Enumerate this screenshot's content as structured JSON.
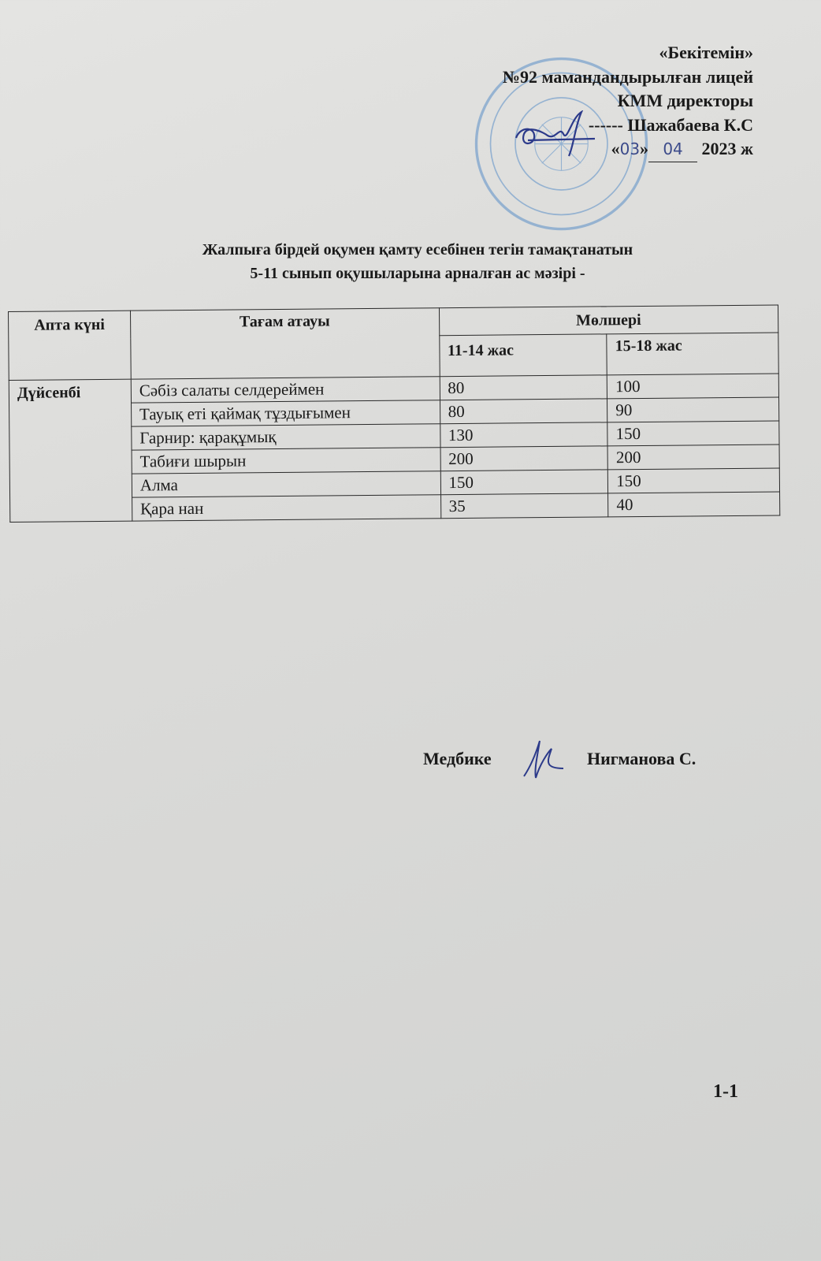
{
  "approval": {
    "line1": "«Бекітемін»",
    "line2": "№92 мамандандырылған лицей",
    "line3": "КММ директоры",
    "signature_dashes": "------",
    "director_name": "Шажабаева К.С",
    "date_open": "«",
    "date_day": "03",
    "date_close": "»",
    "date_month": "04",
    "date_year": "2023 ж",
    "stamp_color": "#5a8fc8"
  },
  "title": {
    "line1": "Жалпыға бірдей оқумен қамту есебінен тегін тамақтанатын",
    "line2": "5-11 сынып оқушыларына арналған ас мәзірі -"
  },
  "table": {
    "headers": {
      "day": "Апта күні",
      "dish": "Тағам атауы",
      "amount": "Мөлшері",
      "age1": "11-14 жас",
      "age2": "15-18 жас"
    },
    "day": "Дүйсенбі",
    "rows": [
      {
        "dish": "Сәбіз салаты селдереймен",
        "a": "80",
        "b": "100"
      },
      {
        "dish": "Тауық еті қаймақ тұздығымен",
        "a": "80",
        "b": "90"
      },
      {
        "dish": "Гарнир: қарақұмық",
        "a": "130",
        "b": "150"
      },
      {
        "dish": "Табиғи шырын",
        "a": "200",
        "b": "200"
      },
      {
        "dish": "Алма",
        "a": "150",
        "b": "150"
      },
      {
        "dish": "Қара нан",
        "a": "35",
        "b": "40"
      }
    ]
  },
  "nurse": {
    "label": "Медбике",
    "name": "Нигманова С."
  },
  "page_number": "1-1"
}
